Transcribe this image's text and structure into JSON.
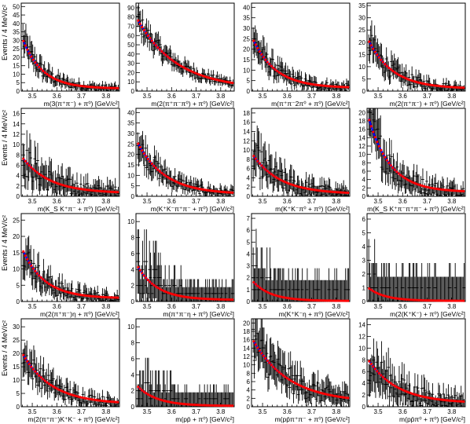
{
  "ylabel": "Events / 4 MeV/c²",
  "x_ticks": [
    "3.5",
    "3.6",
    "3.7",
    "3.8"
  ],
  "x_range": [
    3.455,
    3.855
  ],
  "colors": {
    "data": "#000000",
    "fit_line": "#0000ff",
    "fit_points": "#ff0000",
    "frame": "#000000"
  },
  "chart_data": [
    {
      "type": "scatter",
      "xlabel": "m(3(π⁺π⁻) + π⁰) [GeV/c²]",
      "ylim": [
        0,
        52
      ],
      "yticks": [
        0,
        5,
        10,
        15,
        20,
        25,
        30,
        35,
        40,
        45,
        50
      ],
      "fit_start": 31,
      "fit_end": 1.5,
      "decay": 2.2
    },
    {
      "type": "scatter",
      "xlabel": "m(2(π⁺π⁻π⁰) + π⁰) [GeV/c²]",
      "ylim": [
        0,
        95
      ],
      "yticks": [
        0,
        10,
        20,
        30,
        40,
        50,
        60,
        70,
        80,
        90
      ],
      "fit_start": 78,
      "fit_end": 2,
      "decay": 1.1
    },
    {
      "type": "scatter",
      "xlabel": "m(π⁺π⁻2π⁰ + π⁰) [GeV/c²]",
      "ylim": [
        0,
        42
      ],
      "yticks": [
        0,
        5,
        10,
        15,
        20,
        25,
        30,
        35,
        40
      ],
      "fit_start": 25,
      "fit_end": 1.5,
      "decay": 1.9
    },
    {
      "type": "scatter",
      "xlabel": "m(2(π⁺π⁻) + π⁰) [GeV/c²]",
      "ylim": [
        0,
        36
      ],
      "yticks": [
        0,
        5,
        10,
        15,
        20,
        25,
        30,
        35
      ],
      "fit_start": 21,
      "fit_end": 1,
      "decay": 1.8
    },
    {
      "type": "scatter",
      "xlabel": "m(K_S K⁺π⁻ + π⁰) [GeV/c²]",
      "ylim": [
        0,
        17
      ],
      "yticks": [
        0,
        2,
        4,
        6,
        8,
        10,
        12,
        14,
        16
      ],
      "fit_start": 7.5,
      "fit_end": 0.6,
      "decay": 1.6
    },
    {
      "type": "scatter",
      "xlabel": "m(K⁺K⁻π⁺π⁻ + π⁰) [GeV/c²]",
      "ylim": [
        0,
        42
      ],
      "yticks": [
        0,
        5,
        10,
        15,
        20,
        25,
        30,
        35,
        40
      ],
      "fit_start": 26,
      "fit_end": 1,
      "decay": 1.6
    },
    {
      "type": "scatter",
      "xlabel": "m(K⁺K⁻π⁰ + π⁰) [GeV/c²]",
      "ylim": [
        0,
        19
      ],
      "yticks": [
        0,
        2,
        4,
        6,
        8,
        10,
        12,
        14,
        16,
        18
      ],
      "fit_start": 9,
      "fit_end": 0.5,
      "decay": 1.6
    },
    {
      "type": "scatter",
      "xlabel": "m(K_S K⁺π⁻π⁺π⁻ + π⁰) [GeV/c²]",
      "ylim": [
        0,
        21
      ],
      "yticks": [
        0,
        2,
        4,
        6,
        8,
        10,
        12,
        14,
        16,
        18,
        20
      ],
      "fit_start": 19,
      "fit_end": 1,
      "decay": 2.0
    },
    {
      "type": "scatter",
      "xlabel": "m(2(π⁺π⁻)η + π⁰) [GeV/c²]",
      "ylim": [
        0,
        27
      ],
      "yticks": [
        0,
        5,
        10,
        15,
        20,
        25
      ],
      "fit_start": 16,
      "fit_end": 1,
      "decay": 2.0
    },
    {
      "type": "scatter",
      "xlabel": "m(π⁺π⁻η + π⁰) [GeV/c²]",
      "ylim": [
        0,
        11
      ],
      "yticks": [
        0,
        2,
        4,
        6,
        8,
        10
      ],
      "fit_start": 4.5,
      "fit_end": 0.2,
      "decay": 2.2
    },
    {
      "type": "scatter",
      "xlabel": "m(K⁺K⁻η + π⁰) [GeV/c²]",
      "ylim": [
        0,
        7.4
      ],
      "yticks": [
        0,
        1,
        2,
        3,
        4,
        5,
        6,
        7
      ],
      "fit_start": 1.7,
      "fit_end": 0.05,
      "decay": 2.4
    },
    {
      "type": "scatter",
      "xlabel": "m(2(K⁺K⁻) + π⁰) [GeV/c²]",
      "ylim": [
        0,
        6.4
      ],
      "yticks": [
        0,
        1,
        2,
        3,
        4,
        5,
        6
      ],
      "fit_start": 1.0,
      "fit_end": 0.05,
      "decay": 2.6
    },
    {
      "type": "scatter",
      "xlabel": "m(2(π⁺π⁻)K⁺K⁻ + π⁰) [GeV/c²]",
      "ylim": [
        0,
        33
      ],
      "yticks": [
        0,
        5,
        10,
        15,
        20,
        25,
        30
      ],
      "fit_start": 20,
      "fit_end": 1,
      "decay": 1.5
    },
    {
      "type": "scatter",
      "xlabel": "m(pp̄ + π⁰) [GeV/c²]",
      "ylim": [
        0,
        11
      ],
      "yticks": [
        0,
        2,
        4,
        6,
        8,
        10
      ],
      "fit_start": 2.6,
      "fit_end": 0.1,
      "decay": 2.2
    },
    {
      "type": "scatter",
      "xlabel": "m(pp̄π⁺π⁻ + π⁰) [GeV/c²]",
      "ylim": [
        0,
        21
      ],
      "yticks": [
        0,
        2,
        4,
        6,
        8,
        10,
        12,
        14,
        16,
        18,
        20
      ],
      "fit_start": 16,
      "fit_end": 1,
      "decay": 1.2
    },
    {
      "type": "scatter",
      "xlabel": "m(pp̄π⁰ + π⁰) [GeV/c²]",
      "ylim": [
        0,
        15
      ],
      "yticks": [
        0,
        2,
        4,
        6,
        8,
        10,
        12,
        14
      ],
      "fit_start": 8,
      "fit_end": 0.6,
      "decay": 1.5
    }
  ]
}
